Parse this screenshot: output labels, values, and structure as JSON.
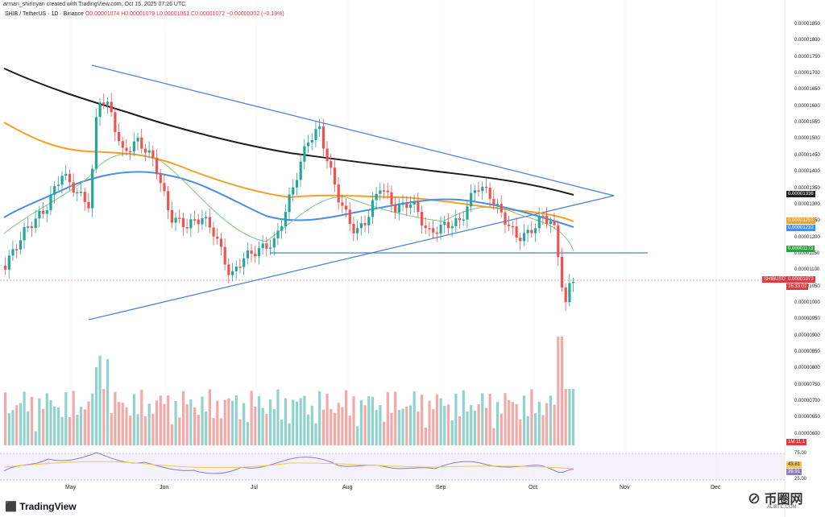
{
  "header": {
    "title": "arman_shirinyan created with TradingView.com, Oct 15, 2025 07:26 UTC",
    "symbol": "SHIB / TetherUS · 1D · Binance",
    "ohlc": "O0.00001074 H0.00001079 L0.00001061 C0.00001072 −0.00000002 (−0.19%)"
  },
  "y_axis": [
    "0.00001850",
    "0.00001800",
    "0.00001750",
    "0.00001700",
    "0.00001650",
    "0.00001600",
    "0.00001550",
    "0.00001500",
    "0.00001450",
    "0.00001400",
    "0.00001350",
    "0.00001300",
    "0.00001250",
    "0.00001200",
    "0.00001150",
    "0.00001100",
    "0.00001050",
    "0.00001000",
    "0.00000950",
    "0.00000900",
    "0.00000850",
    "0.00000800",
    "0.00000750",
    "0.00000700",
    "0.00000650",
    "0.00000600"
  ],
  "badges": {
    "ma200": "0.00001336",
    "ma100": "0.00001253",
    "ma50": "0.00001232",
    "ma20": "0.00001173",
    "price_symbol": "SHIBUSDT",
    "price": "0.00001072",
    "countdown": "16:33:02",
    "volume": "1M 11.1",
    "rsi_ma": "43.81",
    "rsi": "39.91"
  },
  "rsi_axis": {
    "top": "75.00",
    "bottom": "25.00"
  },
  "x_axis": [
    "May",
    "Jun",
    "Jul",
    "Aug",
    "Sep",
    "Oct",
    "Nov",
    "Dec"
  ],
  "footer": {
    "logo": "TradingView",
    "watermark": "币圈网",
    "watermark_sub": "ALIBTC.COM"
  },
  "colors": {
    "up": "#26a69a",
    "down": "#ef5350",
    "ma200": "#1e1e1e",
    "ma100": "#f2a12b",
    "ma50": "#4a90e2",
    "ma20": "#7bc67b",
    "trend": "#4a7fd6",
    "price": "#e0393e"
  }
}
